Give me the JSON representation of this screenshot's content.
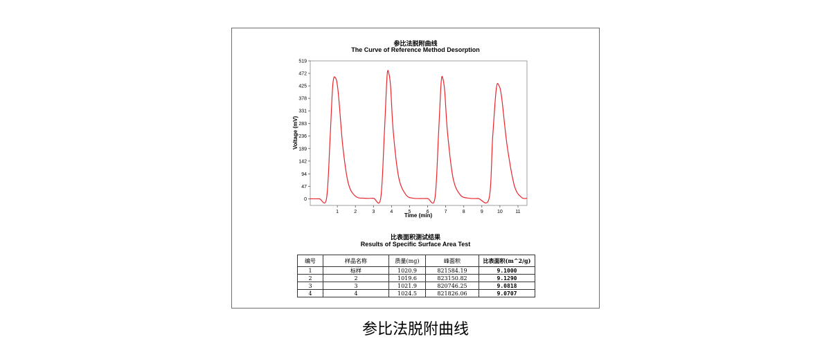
{
  "chart_data": {
    "type": "line",
    "title": "参比法脱附曲线",
    "subtitle": "The Curve of Reference Method Desorption",
    "xlabel": "Time (min)",
    "ylabel": "Voltage (mV)",
    "xlim": [
      -0.5,
      11.5
    ],
    "ylim": [
      -25,
      519
    ],
    "x_ticks": [
      1,
      2,
      3,
      4,
      5,
      6,
      7,
      8,
      9,
      10,
      11
    ],
    "y_ticks": [
      0,
      47,
      94,
      142,
      189,
      236,
      283,
      331,
      378,
      425,
      472,
      519
    ],
    "grid": false,
    "series_color": "#e8242a",
    "series": [
      {
        "x": [
          -0.5,
          0,
          0.4,
          0.6,
          0.75,
          0.9,
          1.05,
          1.3,
          1.6,
          2.0,
          2.5,
          3.0,
          3.4,
          3.6,
          3.75,
          3.85,
          3.95,
          4.1,
          4.4,
          4.8,
          5.2,
          5.6,
          6.0,
          6.4,
          6.6,
          6.75,
          6.85,
          6.95,
          7.1,
          7.4,
          7.8,
          8.3,
          8.8,
          9.4,
          9.6,
          9.8,
          9.95,
          10.1,
          10.4,
          10.8,
          11.2,
          11.5
        ],
        "y": [
          0,
          0,
          1,
          230,
          430,
          455,
          400,
          200,
          60,
          10,
          2,
          2,
          1,
          240,
          460,
          472,
          420,
          250,
          80,
          15,
          2,
          1,
          1,
          1,
          240,
          440,
          450,
          400,
          250,
          80,
          15,
          2,
          1,
          1,
          230,
          415,
          425,
          380,
          200,
          50,
          5,
          2
        ]
      }
    ]
  },
  "table": {
    "title_cn": "比表面积测试结果",
    "title_en": "Results of Specific Surface Area Test",
    "headers": [
      "编号",
      "样品名称",
      "质量(mg)",
      "峰面积",
      "比表面积(m^2/g)"
    ],
    "rows": [
      [
        "1",
        "标样",
        "1020.9",
        "821584.19",
        "9.1000"
      ],
      [
        "2",
        "2",
        "1019.6",
        "823150.82",
        "9.1290"
      ],
      [
        "3",
        "3",
        "1021.9",
        "820746.25",
        "9.0818"
      ],
      [
        "4",
        "4",
        "1024.5",
        "821826.06",
        "9.0707"
      ]
    ]
  },
  "caption": "参比法脱附曲线"
}
